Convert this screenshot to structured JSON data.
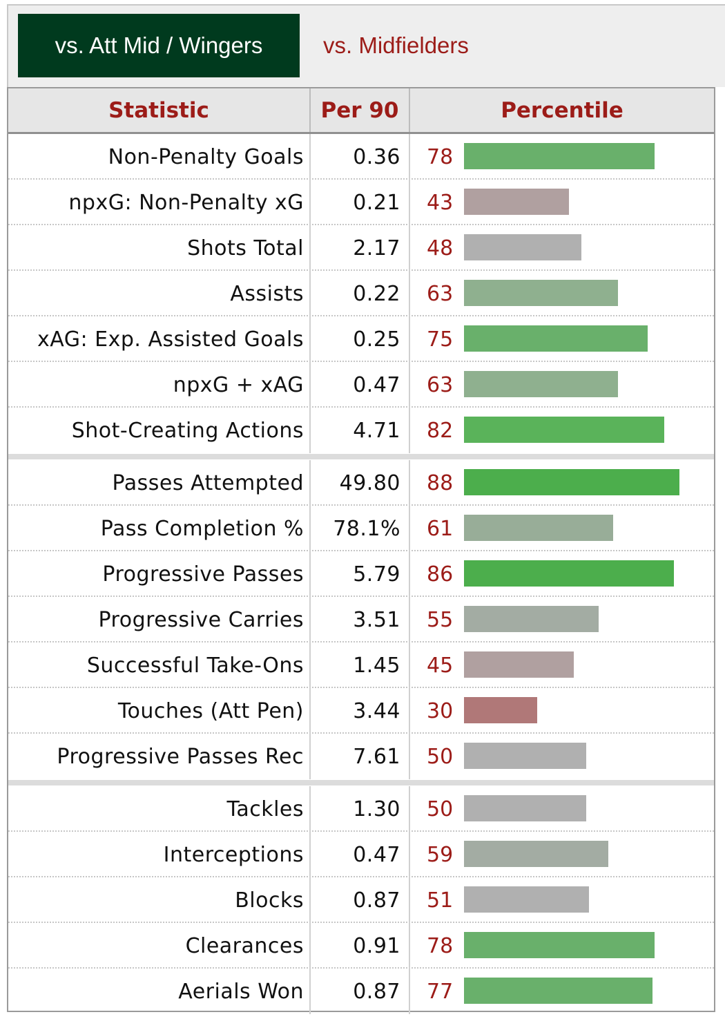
{
  "tabs": {
    "active_label": "vs. Att Mid / Wingers",
    "inactive_label": "vs. Midfielders"
  },
  "table": {
    "headers": {
      "statistic": "Statistic",
      "per90": "Per 90",
      "percentile": "Percentile"
    },
    "groups": [
      [
        {
          "stat": "Non-Penalty Goals",
          "per90": "0.36",
          "percentile": 78
        },
        {
          "stat": "npxG: Non-Penalty xG",
          "per90": "0.21",
          "percentile": 43
        },
        {
          "stat": "Shots Total",
          "per90": "2.17",
          "percentile": 48
        },
        {
          "stat": "Assists",
          "per90": "0.22",
          "percentile": 63
        },
        {
          "stat": "xAG: Exp. Assisted Goals",
          "per90": "0.25",
          "percentile": 75
        },
        {
          "stat": "npxG + xAG",
          "per90": "0.47",
          "percentile": 63
        },
        {
          "stat": "Shot-Creating Actions",
          "per90": "4.71",
          "percentile": 82
        }
      ],
      [
        {
          "stat": "Passes Attempted",
          "per90": "49.80",
          "percentile": 88
        },
        {
          "stat": "Pass Completion %",
          "per90": "78.1%",
          "percentile": 61
        },
        {
          "stat": "Progressive Passes",
          "per90": "5.79",
          "percentile": 86
        },
        {
          "stat": "Progressive Carries",
          "per90": "3.51",
          "percentile": 55
        },
        {
          "stat": "Successful Take-Ons",
          "per90": "1.45",
          "percentile": 45
        },
        {
          "stat": "Touches (Att Pen)",
          "per90": "3.44",
          "percentile": 30
        },
        {
          "stat": "Progressive Passes Rec",
          "per90": "7.61",
          "percentile": 50
        }
      ],
      [
        {
          "stat": "Tackles",
          "per90": "1.30",
          "percentile": 50
        },
        {
          "stat": "Interceptions",
          "per90": "0.47",
          "percentile": 59
        },
        {
          "stat": "Blocks",
          "per90": "0.87",
          "percentile": 51
        },
        {
          "stat": "Clearances",
          "per90": "0.91",
          "percentile": 78
        },
        {
          "stat": "Aerials Won",
          "per90": "0.87",
          "percentile": 77
        }
      ]
    ]
  },
  "colors": {
    "tab_active_bg": "#003a1e",
    "accent_red": "#9c1c18",
    "bar_high": "#4cae4c",
    "bar_mid_green": "#8fb08f",
    "bar_neutral": "#b0b0b0",
    "bar_low_mauve": "#b0a0a0",
    "bar_low_red": "#b07878"
  }
}
